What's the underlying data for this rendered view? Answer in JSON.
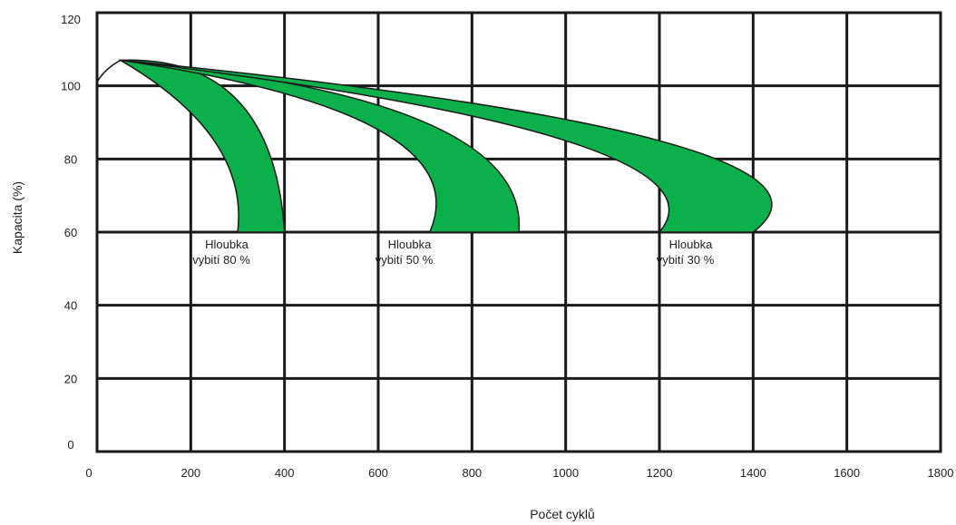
{
  "chart_data": {
    "type": "area",
    "xlabel": "Počet cyklů",
    "ylabel": "Kapacita (%)",
    "xlim": [
      0,
      1800
    ],
    "ylim": [
      0,
      120
    ],
    "x_ticks": [
      0,
      200,
      400,
      600,
      800,
      1000,
      1200,
      1400,
      1600,
      1800
    ],
    "y_ticks": [
      0,
      20,
      40,
      60,
      80,
      100,
      120
    ],
    "grid": true,
    "band_color": "#0bb04b",
    "initial_curve": {
      "x": [
        0,
        15,
        50
      ],
      "y": [
        101,
        104,
        107
      ]
    },
    "series": [
      {
        "name_lines": [
          "Hloubka",
          "vybití 80 %"
        ],
        "peak": [
          50,
          107
        ],
        "upper_edge": {
          "x": [
            50,
            300,
            400
          ],
          "y": [
            107,
            96,
            60
          ]
        },
        "lower_edge": {
          "x": [
            50,
            250,
            300
          ],
          "y": [
            107,
            85,
            60
          ]
        },
        "label_at": [
          300,
          58
        ]
      },
      {
        "name_lines": [
          "Hloubka",
          "vybití 50 %"
        ],
        "peak": [
          50,
          107
        ],
        "upper_edge": {
          "x": [
            50,
            700,
            900
          ],
          "y": [
            107,
            90,
            60
          ]
        },
        "lower_edge": {
          "x": [
            50,
            600,
            710
          ],
          "y": [
            107,
            88,
            60
          ]
        },
        "label_at": [
          690,
          58
        ]
      },
      {
        "name_lines": [
          "Hloubka",
          "vybití 30 %"
        ],
        "peak": [
          50,
          107
        ],
        "upper_edge": {
          "x": [
            50,
            1200,
            1400
          ],
          "y": [
            107,
            85,
            60
          ]
        },
        "lower_edge": {
          "x": [
            50,
            1000,
            1200
          ],
          "y": [
            107,
            85,
            60
          ]
        },
        "label_at": [
          1290,
          58
        ]
      }
    ]
  }
}
